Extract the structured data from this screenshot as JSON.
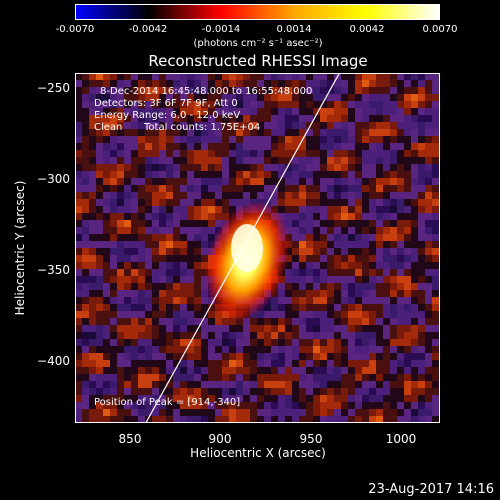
{
  "colorbar": {
    "ticks": [
      "-0.0070",
      "-0.0042",
      "-0.0014",
      "0.0014",
      "0.0042",
      "0.0070"
    ],
    "units": "(photons cm⁻² s⁻¹ asec⁻²)",
    "colors": [
      "#0000ff",
      "#000000",
      "#ff0000",
      "#ffa500",
      "#ffff00",
      "#ffffff"
    ]
  },
  "title": "Reconstructed RHESSI Image",
  "annotations": {
    "time_range": "8-Dec-2014 16:45:48.000 to 16:55:48.000",
    "detectors": "Detectors: 3F 6F 7F 9F, Att 0",
    "energy": "Energy Range: 6.0 - 12.0 keV",
    "method": "Clean",
    "counts": "Total counts: 1.75E+04",
    "peak": "Position of Peak = [914,-340]"
  },
  "axes": {
    "xlabel": "Heliocentric X (arcsec)",
    "ylabel": "Heliocentric Y (arcsec)",
    "xticks": [
      "850",
      "900",
      "950",
      "1000"
    ],
    "yticks": [
      "−250",
      "−300",
      "−350",
      "−400"
    ],
    "xlim": [
      818,
      1020
    ],
    "ylim": [
      -433,
      -243
    ]
  },
  "footer": "23-Aug-2017 14:16"
}
